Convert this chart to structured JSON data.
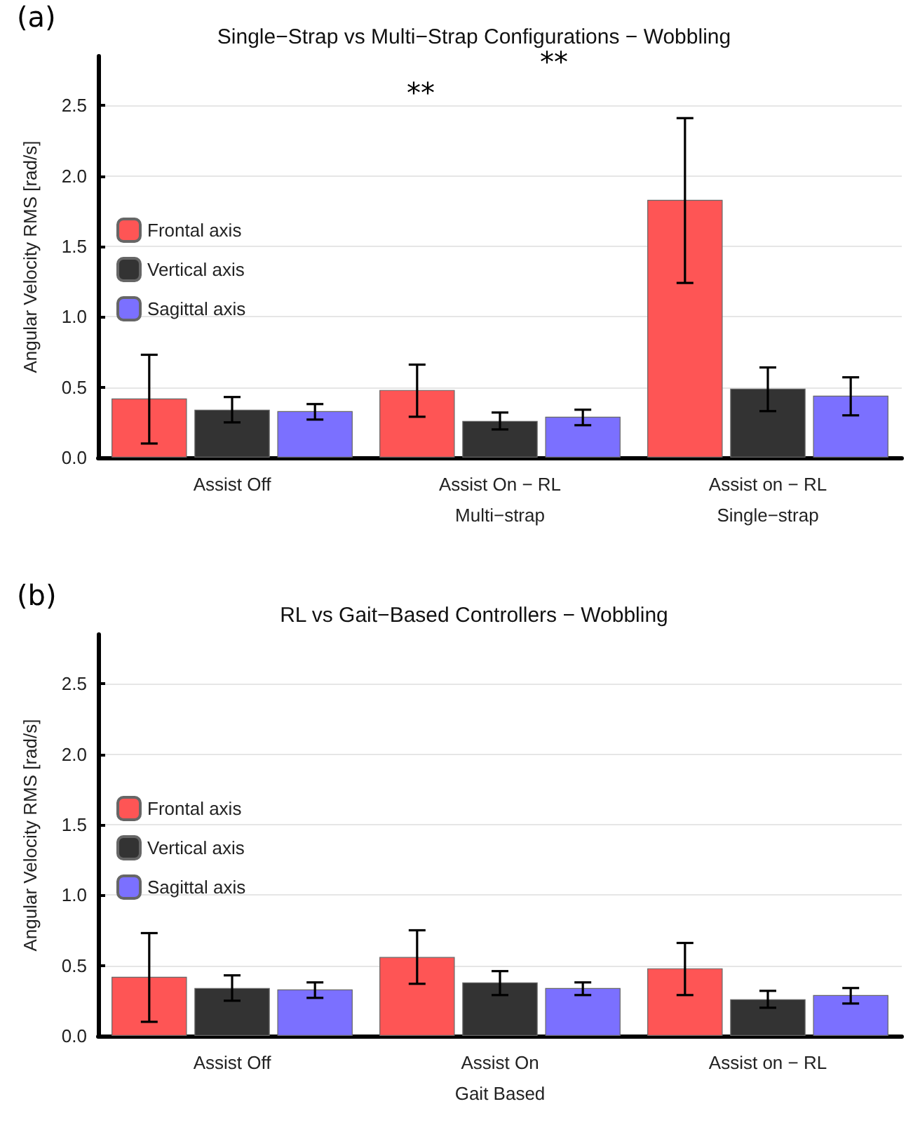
{
  "chart_data": [
    {
      "type": "bar",
      "title": "Single−Strap vs Multi−Strap Configurations − Wobbling",
      "ylabel": "Angular Velocity RMS [rad/s]",
      "annotations": [
        "(a)",
        "**",
        "**"
      ],
      "categories": [
        "Assist Off",
        "Assist On − RL\nMulti−strap",
        "Assist on − RL\nSingle−strap"
      ],
      "series": [
        {
          "name": "Frontal axis",
          "color": "#fe5555",
          "values": [
            0.42,
            0.48,
            1.83
          ],
          "errors": [
            [
              0.1,
              0.73
            ],
            [
              0.29,
              0.66
            ],
            [
              1.24,
              2.41
            ]
          ]
        },
        {
          "name": "Vertical axis",
          "color": "#333333",
          "values": [
            0.34,
            0.26,
            0.49
          ],
          "errors": [
            [
              0.25,
              0.43
            ],
            [
              0.2,
              0.32
            ],
            [
              0.33,
              0.64
            ]
          ]
        },
        {
          "name": "Sagittal axis",
          "color": "#7b70ff",
          "values": [
            0.33,
            0.29,
            0.44
          ],
          "errors": [
            [
              0.27,
              0.38
            ],
            [
              0.23,
              0.34
            ],
            [
              0.3,
              0.57
            ]
          ]
        }
      ],
      "ylim": [
        0,
        2.85
      ],
      "yticks": [
        {
          "value": 0,
          "label": "0.0"
        },
        0.5,
        {
          "value": 1,
          "label": "1.0"
        },
        1.5,
        {
          "value": 2,
          "label": "2.0"
        },
        2.5
      ],
      "grid": "y",
      "legend": "left"
    },
    {
      "type": "bar",
      "title": "RL vs Gait−Based Controllers − Wobbling",
      "ylabel": "Angular Velocity RMS [rad/s]",
      "annotations": [
        "(b)"
      ],
      "categories": [
        "Assist Off",
        "Assist On\nGait Based",
        "Assist on − RL"
      ],
      "series": [
        {
          "name": "Frontal axis",
          "color": "#fe5555",
          "values": [
            0.42,
            0.56,
            0.48
          ],
          "errors": [
            [
              0.1,
              0.73
            ],
            [
              0.37,
              0.75
            ],
            [
              0.29,
              0.66
            ]
          ]
        },
        {
          "name": "Vertical axis",
          "color": "#333333",
          "values": [
            0.34,
            0.38,
            0.26
          ],
          "errors": [
            [
              0.25,
              0.43
            ],
            [
              0.29,
              0.46
            ],
            [
              0.2,
              0.32
            ]
          ]
        },
        {
          "name": "Sagittal axis",
          "color": "#7b70ff",
          "values": [
            0.33,
            0.34,
            0.29
          ],
          "errors": [
            [
              0.27,
              0.38
            ],
            [
              0.29,
              0.38
            ],
            [
              0.23,
              0.34
            ]
          ]
        }
      ],
      "ylim": [
        0,
        2.85
      ],
      "yticks": [
        {
          "value": 0,
          "label": "0.0"
        },
        0.5,
        {
          "value": 1,
          "label": "1.0"
        },
        1.5,
        {
          "value": 2,
          "label": "2.0"
        },
        2.5
      ],
      "grid": "y",
      "legend": "left"
    }
  ]
}
